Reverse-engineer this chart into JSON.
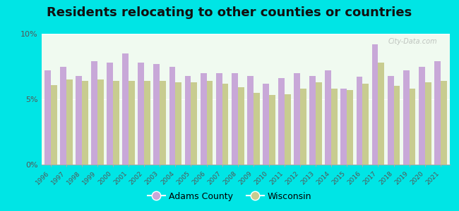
{
  "title": "Residents relocating to other counties or countries",
  "years": [
    1996,
    1997,
    1998,
    1999,
    2000,
    2001,
    2002,
    2003,
    2004,
    2005,
    2006,
    2007,
    2008,
    2009,
    2010,
    2011,
    2012,
    2013,
    2014,
    2015,
    2016,
    2017,
    2018,
    2019,
    2020,
    2021
  ],
  "adams_county": [
    7.2,
    7.5,
    6.8,
    7.9,
    7.8,
    8.5,
    7.8,
    7.7,
    7.5,
    6.8,
    7.0,
    7.0,
    7.0,
    6.8,
    6.2,
    6.6,
    7.0,
    6.8,
    7.2,
    5.8,
    6.7,
    9.2,
    6.8,
    7.2,
    7.5,
    7.9
  ],
  "wisconsin": [
    6.1,
    6.5,
    6.4,
    6.5,
    6.4,
    6.4,
    6.4,
    6.4,
    6.3,
    6.3,
    6.4,
    6.2,
    5.9,
    5.5,
    5.3,
    5.4,
    5.8,
    6.3,
    5.8,
    5.7,
    6.2,
    7.8,
    6.0,
    5.8,
    6.3,
    6.4
  ],
  "adams_color": "#c8a8d8",
  "wisconsin_color": "#c8cc90",
  "outer_bg": "#00e5e5",
  "plot_bg_gradient_top": "#f8fff8",
  "plot_bg_gradient_bottom": "#e8f8e8",
  "ylim": [
    0,
    10
  ],
  "yticks": [
    0,
    5,
    10
  ],
  "ytick_labels": [
    "0%",
    "5%",
    "10%"
  ],
  "title_fontsize": 13,
  "legend_labels": [
    "Adams County",
    "Wisconsin"
  ],
  "watermark": "City-Data.com"
}
